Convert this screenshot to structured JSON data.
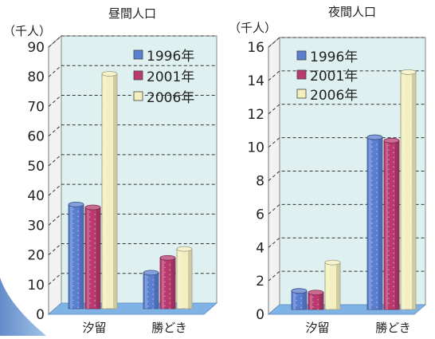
{
  "chart_data": [
    {
      "type": "bar",
      "title": "昼間人口",
      "ylabel": "（千人）",
      "categories": [
        "汐留",
        "勝どき"
      ],
      "ylim": [
        0,
        90
      ],
      "yticks": [
        0,
        10,
        20,
        30,
        40,
        50,
        60,
        70,
        80,
        90
      ],
      "grid": true,
      "legend_position": "top-right",
      "series": [
        {
          "name": "1996年",
          "values": [
            37,
            14
          ],
          "color": "#5b7fd0"
        },
        {
          "name": "2001年",
          "values": [
            36,
            19
          ],
          "color": "#b83a6e"
        },
        {
          "name": "2006年",
          "values": [
            81,
            22
          ],
          "color": "#f3efbf"
        }
      ]
    },
    {
      "type": "bar",
      "title": "夜間人口",
      "ylabel": "（千人）",
      "categories": [
        "汐留",
        "勝どき"
      ],
      "ylim": [
        0,
        16
      ],
      "yticks": [
        0,
        2,
        4,
        6,
        8,
        10,
        12,
        14,
        16
      ],
      "grid": true,
      "legend_position": "top-left",
      "series": [
        {
          "name": "1996年",
          "values": [
            1.4,
            10.6
          ],
          "color": "#5b7fd0"
        },
        {
          "name": "2001年",
          "values": [
            1.3,
            10.4
          ],
          "color": "#b83a6e"
        },
        {
          "name": "2006年",
          "values": [
            3.1,
            14.5
          ],
          "color": "#f3efbf"
        }
      ]
    }
  ]
}
